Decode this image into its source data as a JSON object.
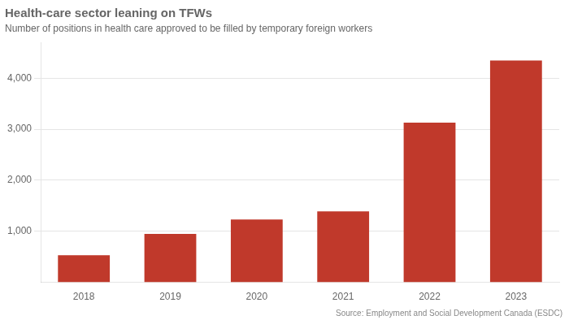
{
  "chart_data": {
    "type": "bar",
    "title": "Health-care sector leaning on TFWs",
    "subtitle": "Number of positions in health care approved to be filled by temporary foreign workers",
    "source": "Source: Employment and Social Development Canada (ESDC)",
    "categories": [
      "2018",
      "2019",
      "2020",
      "2021",
      "2022",
      "2023"
    ],
    "values": [
      530,
      950,
      1230,
      1390,
      3130,
      4350
    ],
    "color": "#c0392b",
    "ylim": [
      0,
      4700
    ],
    "yticks": [
      {
        "value": 1000,
        "label": "1,000"
      },
      {
        "value": 2000,
        "label": "2,000"
      },
      {
        "value": 3000,
        "label": "3,000"
      },
      {
        "value": 4000,
        "label": "4,000"
      }
    ],
    "grid": true
  }
}
